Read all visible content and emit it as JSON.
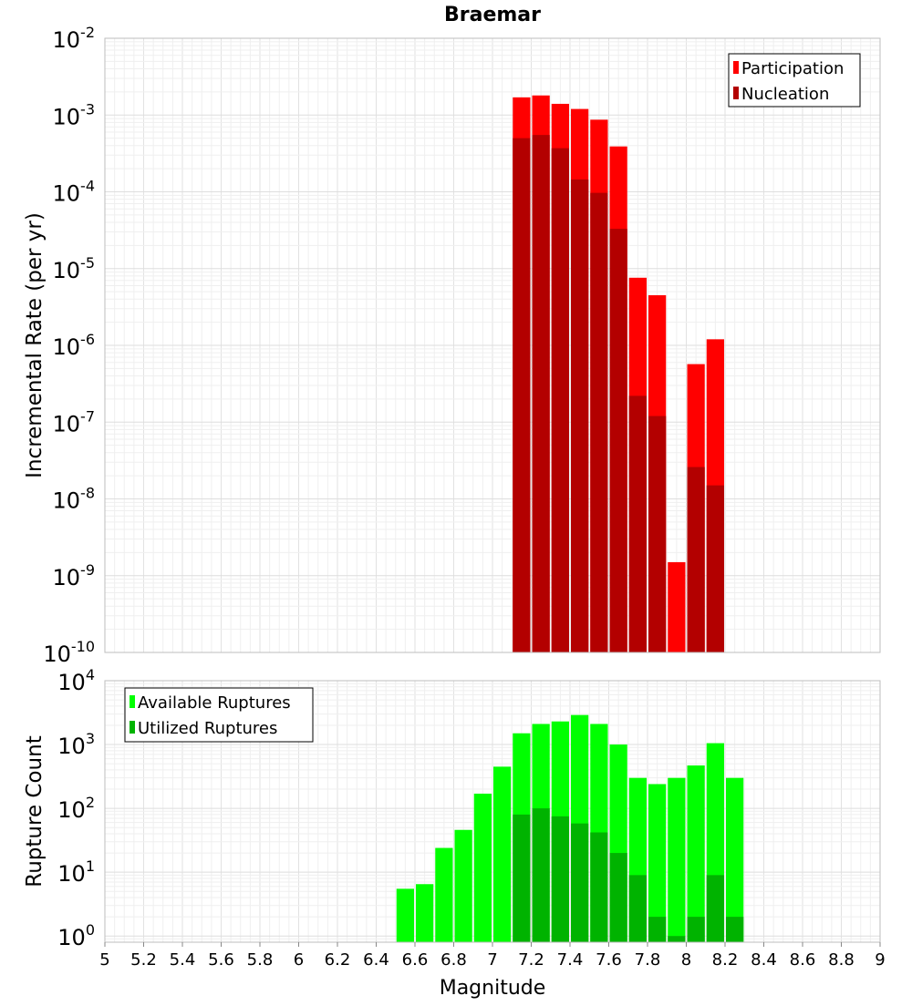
{
  "chart_data": [
    {
      "type": "bar",
      "title": "Braemar",
      "xlabel": "",
      "ylabel": "Incremental Rate (per yr)",
      "yscale": "log",
      "xlim": [
        5,
        9
      ],
      "ylim": [
        1e-10,
        0.01
      ],
      "y_tick_exponents": [
        -10,
        -9,
        -8,
        -7,
        -6,
        -5,
        -4,
        -3,
        -2
      ],
      "bin_width": 0.1,
      "grid": true,
      "legend_position": "top-right",
      "x": [
        7.15,
        7.25,
        7.35,
        7.45,
        7.55,
        7.65,
        7.75,
        7.85,
        7.95,
        8.05,
        8.15
      ],
      "series": [
        {
          "name": "Participation",
          "color": "#ff0000",
          "values": [
            0.0017,
            0.0018,
            0.0014,
            0.0012,
            0.00087,
            0.00039,
            7.6e-06,
            4.5e-06,
            1.5e-09,
            5.7e-07,
            1.2e-06
          ]
        },
        {
          "name": "Nucleation",
          "color": "#b30000",
          "values": [
            0.0005,
            0.00055,
            0.00037,
            0.000145,
            9.7e-05,
            3.3e-05,
            2.2e-07,
            1.2e-07,
            null,
            2.6e-08,
            1.5e-08
          ]
        }
      ]
    },
    {
      "type": "bar",
      "title": "",
      "xlabel": "Magnitude",
      "ylabel": "Rupture Count",
      "yscale": "log",
      "xlim": [
        5,
        9
      ],
      "ylim": [
        0.8,
        10000
      ],
      "y_tick_exponents": [
        0,
        1,
        2,
        3,
        4
      ],
      "x_ticks": [
        5,
        5.2,
        5.4,
        5.6,
        5.8,
        6,
        6.2,
        6.4,
        6.6,
        6.8,
        7,
        7.2,
        7.4,
        7.6,
        7.8,
        8,
        8.2,
        8.4,
        8.6,
        8.8,
        9
      ],
      "x_tick_labels": [
        "5",
        "5.2",
        "5.4",
        "5.6",
        "5.8",
        "6",
        "6.2",
        "6.4",
        "6.6",
        "6.8",
        "7",
        "7.2",
        "7.4",
        "7.6",
        "7.8",
        "8",
        "8.2",
        "8.4",
        "8.6",
        "8.8",
        "9"
      ],
      "bin_width": 0.1,
      "grid": true,
      "legend_position": "top-left",
      "x": [
        6.55,
        6.65,
        6.75,
        6.85,
        6.95,
        7.05,
        7.15,
        7.25,
        7.35,
        7.45,
        7.55,
        7.65,
        7.75,
        7.85,
        7.95,
        8.05,
        8.15,
        8.25
      ],
      "series": [
        {
          "name": "Available Ruptures",
          "color": "#00ff00",
          "values": [
            5.5,
            6.5,
            24,
            46,
            170,
            450,
            1500,
            2100,
            2300,
            2900,
            2100,
            1000,
            300,
            240,
            300,
            470,
            1050,
            300
          ]
        },
        {
          "name": "Utilized Ruptures",
          "color": "#00b300",
          "values": [
            null,
            null,
            null,
            null,
            null,
            null,
            80,
            100,
            75,
            58,
            42,
            20,
            9,
            2,
            1,
            2,
            9,
            2
          ]
        }
      ]
    }
  ]
}
